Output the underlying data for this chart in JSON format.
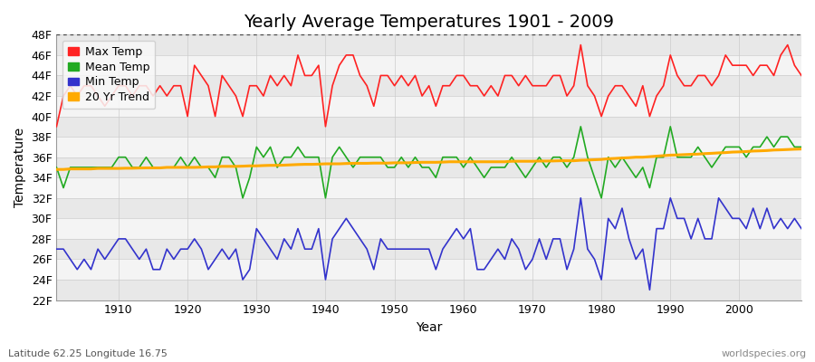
{
  "title": "Yearly Average Temperatures 1901 - 2009",
  "xlabel": "Year",
  "ylabel": "Temperature",
  "subtitle_left": "Latitude 62.25 Longitude 16.75",
  "subtitle_right": "worldspecies.org",
  "years": [
    1901,
    1902,
    1903,
    1904,
    1905,
    1906,
    1907,
    1908,
    1909,
    1910,
    1911,
    1912,
    1913,
    1914,
    1915,
    1916,
    1917,
    1918,
    1919,
    1920,
    1921,
    1922,
    1923,
    1924,
    1925,
    1926,
    1927,
    1928,
    1929,
    1930,
    1931,
    1932,
    1933,
    1934,
    1935,
    1936,
    1937,
    1938,
    1939,
    1940,
    1941,
    1942,
    1943,
    1944,
    1945,
    1946,
    1947,
    1948,
    1949,
    1950,
    1951,
    1952,
    1953,
    1954,
    1955,
    1956,
    1957,
    1958,
    1959,
    1960,
    1961,
    1962,
    1963,
    1964,
    1965,
    1966,
    1967,
    1968,
    1969,
    1970,
    1971,
    1972,
    1973,
    1974,
    1975,
    1976,
    1977,
    1978,
    1979,
    1980,
    1981,
    1982,
    1983,
    1984,
    1985,
    1986,
    1987,
    1988,
    1989,
    1990,
    1991,
    1992,
    1993,
    1994,
    1995,
    1996,
    1997,
    1998,
    1999,
    2000,
    2001,
    2002,
    2003,
    2004,
    2005,
    2006,
    2007,
    2008,
    2009
  ],
  "max_temp": [
    39,
    42,
    43,
    42,
    43,
    43,
    42,
    41,
    42,
    43,
    43,
    42,
    43,
    43,
    42,
    43,
    42,
    43,
    43,
    40,
    45,
    44,
    43,
    40,
    44,
    43,
    42,
    40,
    43,
    43,
    42,
    44,
    43,
    44,
    43,
    46,
    44,
    44,
    45,
    39,
    43,
    45,
    46,
    46,
    44,
    43,
    41,
    44,
    44,
    43,
    44,
    43,
    44,
    42,
    43,
    41,
    43,
    43,
    44,
    44,
    43,
    43,
    42,
    43,
    42,
    44,
    44,
    43,
    44,
    43,
    43,
    43,
    44,
    44,
    42,
    43,
    47,
    43,
    42,
    40,
    42,
    43,
    43,
    42,
    41,
    43,
    40,
    42,
    43,
    46,
    44,
    43,
    43,
    44,
    44,
    43,
    44,
    46,
    45,
    45,
    45,
    44,
    45,
    45,
    44,
    46,
    47,
    45,
    44
  ],
  "mean_temp": [
    35,
    33,
    35,
    35,
    35,
    35,
    35,
    35,
    35,
    36,
    36,
    35,
    35,
    36,
    35,
    35,
    35,
    35,
    36,
    35,
    36,
    35,
    35,
    34,
    36,
    36,
    35,
    32,
    34,
    37,
    36,
    37,
    35,
    36,
    36,
    37,
    36,
    36,
    36,
    32,
    36,
    37,
    36,
    35,
    36,
    36,
    36,
    36,
    35,
    35,
    36,
    35,
    36,
    35,
    35,
    34,
    36,
    36,
    36,
    35,
    36,
    35,
    34,
    35,
    35,
    35,
    36,
    35,
    34,
    35,
    36,
    35,
    36,
    36,
    35,
    36,
    39,
    36,
    34,
    32,
    36,
    35,
    36,
    35,
    34,
    35,
    33,
    36,
    36,
    39,
    36,
    36,
    36,
    37,
    36,
    35,
    36,
    37,
    37,
    37,
    36,
    37,
    37,
    38,
    37,
    38,
    38,
    37,
    37
  ],
  "min_temp": [
    27,
    27,
    26,
    25,
    26,
    25,
    27,
    26,
    27,
    28,
    28,
    27,
    26,
    27,
    25,
    25,
    27,
    26,
    27,
    27,
    28,
    27,
    25,
    26,
    27,
    26,
    27,
    24,
    25,
    29,
    28,
    27,
    26,
    28,
    27,
    29,
    27,
    27,
    29,
    24,
    28,
    29,
    30,
    29,
    28,
    27,
    25,
    28,
    27,
    27,
    27,
    27,
    27,
    27,
    27,
    25,
    27,
    28,
    29,
    28,
    29,
    25,
    25,
    26,
    27,
    26,
    28,
    27,
    25,
    26,
    28,
    26,
    28,
    28,
    25,
    27,
    32,
    27,
    26,
    24,
    30,
    29,
    31,
    28,
    26,
    27,
    23,
    29,
    29,
    32,
    30,
    30,
    28,
    30,
    28,
    28,
    32,
    31,
    30,
    30,
    29,
    31,
    29,
    31,
    29,
    30,
    29,
    30,
    29
  ],
  "trend": [
    34.8,
    34.8,
    34.85,
    34.85,
    34.85,
    34.85,
    34.9,
    34.9,
    34.9,
    34.9,
    34.92,
    34.92,
    34.94,
    34.95,
    34.95,
    34.95,
    35.0,
    35.0,
    35.0,
    35.0,
    35.0,
    35.02,
    35.05,
    35.05,
    35.1,
    35.1,
    35.1,
    35.12,
    35.15,
    35.15,
    35.18,
    35.2,
    35.2,
    35.22,
    35.25,
    35.28,
    35.3,
    35.3,
    35.32,
    35.35,
    35.35,
    35.35,
    35.38,
    35.4,
    35.4,
    35.4,
    35.42,
    35.42,
    35.42,
    35.45,
    35.45,
    35.45,
    35.48,
    35.5,
    35.5,
    35.5,
    35.52,
    35.55,
    35.55,
    35.55,
    35.55,
    35.55,
    35.55,
    35.55,
    35.55,
    35.55,
    35.6,
    35.6,
    35.6,
    35.6,
    35.62,
    35.62,
    35.63,
    35.65,
    35.65,
    35.65,
    35.7,
    35.72,
    35.75,
    35.78,
    35.85,
    35.88,
    35.92,
    35.95,
    36.0,
    36.0,
    36.05,
    36.1,
    36.15,
    36.2,
    36.22,
    36.25,
    36.28,
    36.3,
    36.35,
    36.38,
    36.42,
    36.45,
    36.5,
    36.52,
    36.55,
    36.6,
    36.62,
    36.65,
    36.7,
    36.72,
    36.75,
    36.78,
    36.8
  ],
  "ylim_min": 22,
  "ylim_max": 48,
  "yticks": [
    22,
    24,
    26,
    28,
    30,
    32,
    34,
    36,
    38,
    40,
    42,
    44,
    46,
    48
  ],
  "ytick_labels": [
    "22F",
    "24F",
    "26F",
    "28F",
    "30F",
    "32F",
    "34F",
    "36F",
    "38F",
    "40F",
    "42F",
    "44F",
    "46F",
    "48F"
  ],
  "max_color": "#ff2222",
  "mean_color": "#22aa22",
  "min_color": "#3333cc",
  "trend_color": "#ffaa00",
  "bg_color": "#ffffff",
  "plot_bg_light": "#f0f0f0",
  "plot_bg_dark": "#e0e0e0",
  "grid_color": "#cccccc",
  "title_fontsize": 14,
  "legend_fontsize": 9,
  "tick_fontsize": 9,
  "label_fontsize": 10
}
